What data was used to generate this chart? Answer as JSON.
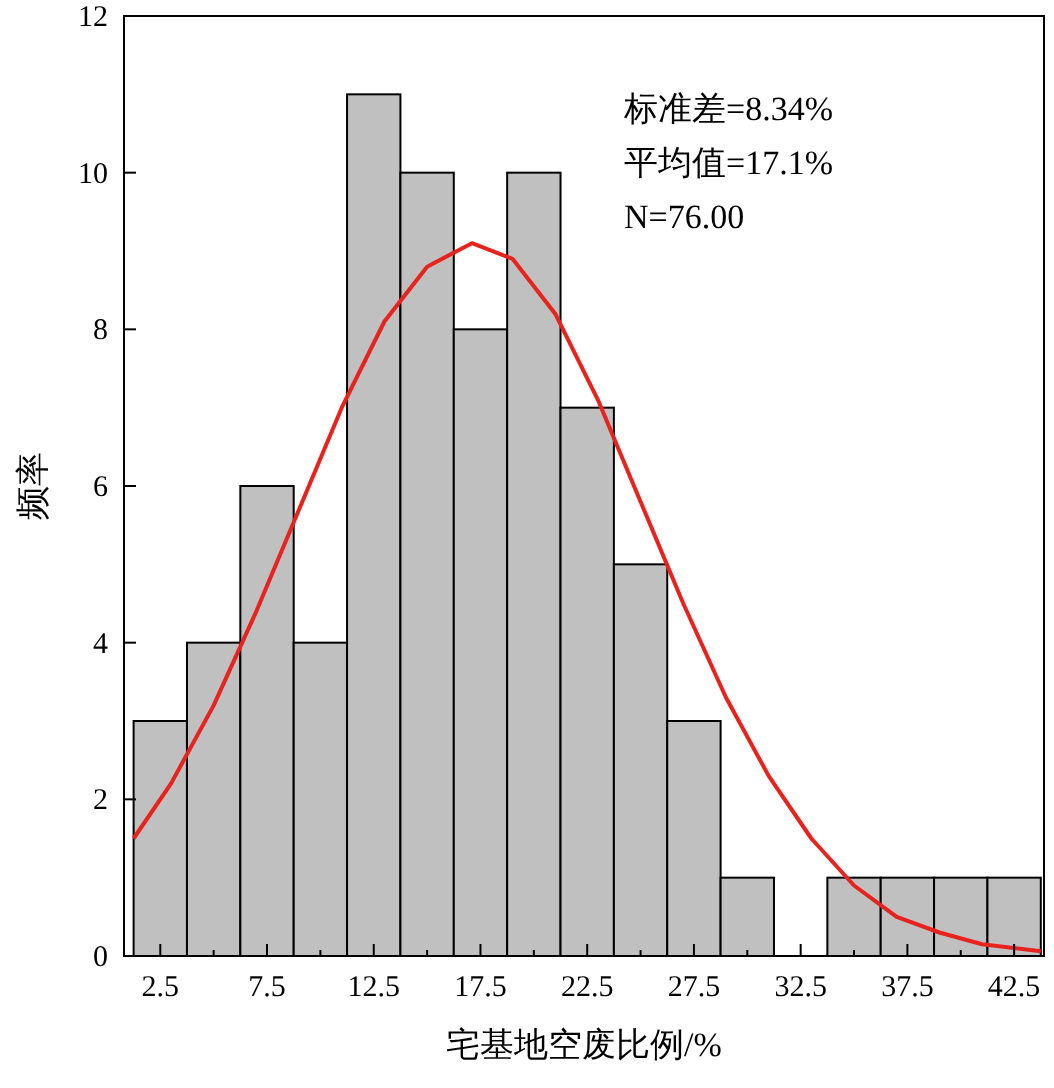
{
  "chart_data": {
    "type": "histogram",
    "xlabel": "宅基地空废比例/%",
    "ylabel": "频率",
    "annotations": [
      "标准差=8.34%",
      "平均值=17.1%",
      "N=76.00"
    ],
    "bins": [
      1.25,
      3.75,
      6.25,
      8.75,
      11.25,
      13.75,
      16.25,
      18.75,
      21.25,
      23.75,
      26.25,
      28.75,
      31.25,
      33.75,
      36.25,
      38.75,
      41.25,
      43.75
    ],
    "series": [
      {
        "color": "#c0c0c0",
        "values": [
          3,
          4,
          6,
          4,
          11,
          10,
          8,
          10,
          7,
          5,
          3,
          1,
          0,
          1,
          1,
          1,
          1
        ]
      },
      {
        "type": "line",
        "color": "#e8231d",
        "x": [
          1.25,
          3,
          5,
          7,
          9,
          11,
          13,
          15,
          17.1,
          19,
          21,
          23,
          25,
          27,
          29,
          31,
          33,
          35,
          37,
          39,
          41,
          43.75
        ],
        "values": [
          1.5,
          2.2,
          3.2,
          4.4,
          5.7,
          7.0,
          8.1,
          8.8,
          9.1,
          8.9,
          8.2,
          7.1,
          5.8,
          4.5,
          3.3,
          2.3,
          1.5,
          0.9,
          0.5,
          0.3,
          0.15,
          0.06
        ]
      }
    ],
    "xlim": [
      0.8,
      43.9
    ],
    "ylim": [
      0,
      12
    ],
    "xticks": [
      2.5,
      {
        "value": 5,
        "label": null
      },
      7.5,
      {
        "value": 10,
        "label": null
      },
      12.5,
      {
        "value": 15,
        "label": null
      },
      17.5,
      {
        "value": 20,
        "label": null
      },
      22.5,
      {
        "value": 25,
        "label": null
      },
      27.5,
      {
        "value": 30,
        "label": null
      },
      32.5,
      {
        "value": 35,
        "label": null
      },
      37.5,
      {
        "value": 40,
        "label": null
      },
      42.5
    ],
    "yticks": [
      0,
      2,
      4,
      6,
      8,
      10,
      12
    ],
    "grid": false
  }
}
